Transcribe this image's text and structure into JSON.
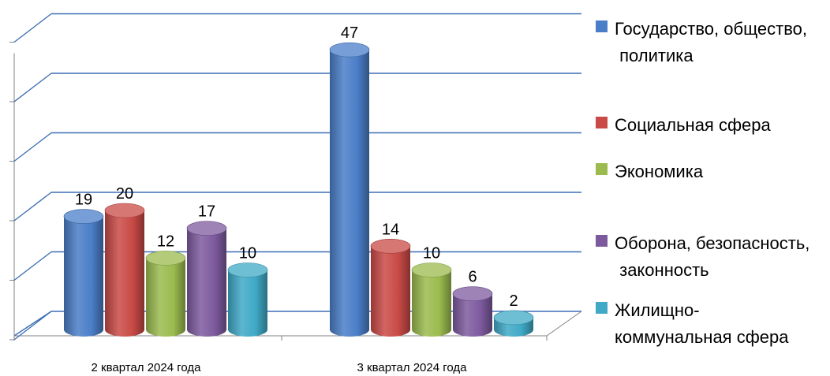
{
  "chart_data": {
    "type": "bar",
    "categories": [
      "2 квартал 2024 года",
      "3 квартал 2024 года"
    ],
    "series": [
      {
        "name": "Государство, общество, политика",
        "color": "#4A7EC8",
        "values": [
          19,
          47
        ]
      },
      {
        "name": "Социальная сфера",
        "color": "#C94A46",
        "values": [
          20,
          14
        ]
      },
      {
        "name": "Экономика",
        "color": "#9BBB4E",
        "values": [
          12,
          10
        ]
      },
      {
        "name": "Оборона, безопасность, законность",
        "color": "#7D5A9E",
        "values": [
          17,
          6
        ]
      },
      {
        "name": "Жилищно-коммунальная сфера",
        "color": "#3FA9C6",
        "values": [
          10,
          2
        ]
      }
    ],
    "ylim": [
      0,
      50
    ],
    "grid": true,
    "legend_position": "right",
    "three_d": true
  },
  "legend": [
    {
      "lines": [
        "Государство, общество,",
        " политика"
      ]
    },
    {
      "lines": [
        "Социальная сфера"
      ]
    },
    {
      "lines": [
        "Экономика"
      ]
    },
    {
      "lines": [
        "Оборона, безопасность,",
        " законность"
      ]
    },
    {
      "lines": [
        "Жилищно-",
        "коммунальная сфера"
      ]
    }
  ]
}
